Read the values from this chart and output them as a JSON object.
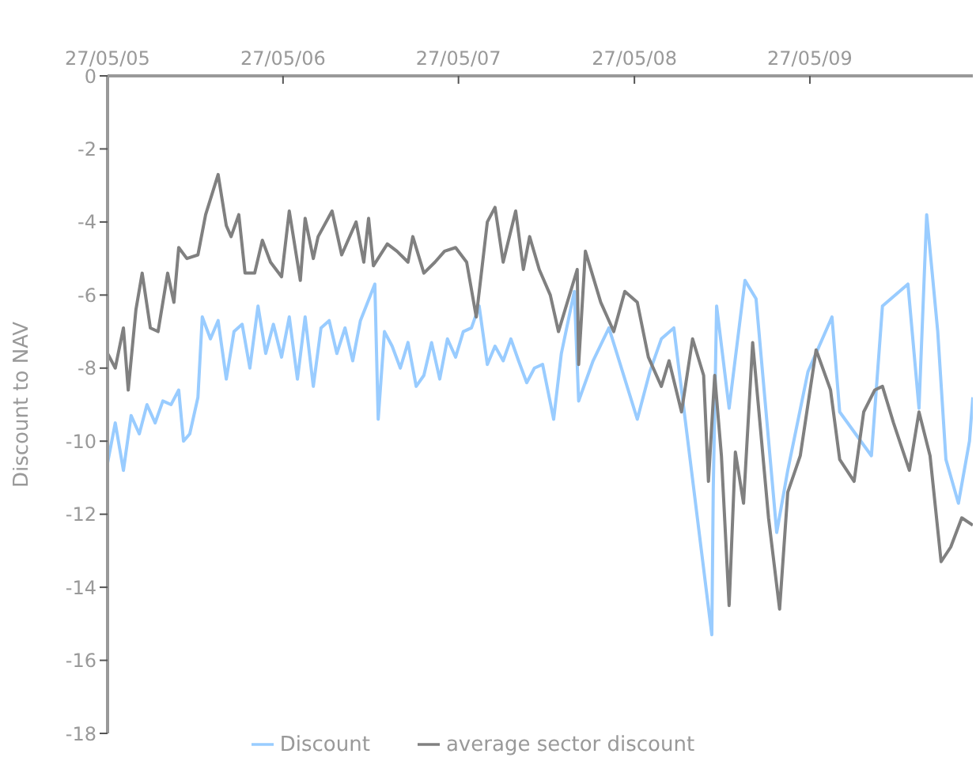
{
  "chart_data": {
    "type": "line",
    "ylabel": "Discount to NAV",
    "xlim": [
      "2005-05-27",
      "2010-05-01"
    ],
    "xticks": [
      {
        "value": "2005-05-27",
        "label": "27/05/05"
      },
      {
        "value": "2006-05-27",
        "label": "27/05/06"
      },
      {
        "value": "2007-05-27",
        "label": "27/05/07"
      },
      {
        "value": "2008-05-27",
        "label": "27/05/08"
      },
      {
        "value": "2009-05-27",
        "label": "27/05/09"
      }
    ],
    "ylim": [
      -18,
      0
    ],
    "yticks": [
      0,
      -2,
      -4,
      -6,
      -8,
      -10,
      -12,
      -14,
      -16,
      -18
    ],
    "grid": false,
    "legend": "bottom",
    "line_style": "solid",
    "marker": "none",
    "series": [
      {
        "name": "Discount",
        "color": "#99ccff",
        "x": [
          "2005-05-27",
          "2005-06-12",
          "2005-06-29",
          "2005-07-15",
          "2005-08-01",
          "2005-08-17",
          "2005-09-03",
          "2005-09-19",
          "2005-10-06",
          "2005-10-22",
          "2005-11-01",
          "2005-11-14",
          "2005-12-01",
          "2005-12-10",
          "2005-12-27",
          "2006-01-12",
          "2006-01-29",
          "2006-02-14",
          "2006-03-03",
          "2006-03-19",
          "2006-04-05",
          "2006-04-21",
          "2006-05-07",
          "2006-05-24",
          "2006-06-09",
          "2006-06-26",
          "2006-07-12",
          "2006-07-29",
          "2006-08-14",
          "2006-08-31",
          "2006-09-16",
          "2006-10-03",
          "2006-10-19",
          "2006-11-04",
          "2006-12-04",
          "2006-12-11",
          "2006-12-24",
          "2007-01-09",
          "2007-01-26",
          "2007-02-11",
          "2007-02-28",
          "2007-03-16",
          "2007-04-01",
          "2007-04-18",
          "2007-05-04",
          "2007-05-21",
          "2007-06-06",
          "2007-06-23",
          "2007-07-09",
          "2007-07-26",
          "2007-08-11",
          "2007-08-28",
          "2007-09-13",
          "2007-09-29",
          "2007-10-16",
          "2007-11-01",
          "2007-11-18",
          "2007-12-11",
          "2007-12-27",
          "2008-01-23",
          "2008-02-01",
          "2008-03-02",
          "2008-04-04",
          "2008-06-02",
          "2008-06-28",
          "2008-07-22",
          "2008-08-17",
          "2008-11-04",
          "2008-11-07",
          "2008-11-14",
          "2008-12-10",
          "2009-01-12",
          "2009-02-04",
          "2009-03-19",
          "2009-04-11",
          "2009-05-23",
          "2009-07-12",
          "2009-07-28",
          "2009-10-02",
          "2009-10-25",
          "2009-12-17",
          "2010-01-09",
          "2010-01-25",
          "2010-02-17",
          "2010-03-06",
          "2010-04-01",
          "2010-04-24",
          "2010-05-01"
        ],
        "values": [
          -10.6,
          -9.5,
          -10.8,
          -9.3,
          -9.8,
          -9.0,
          -9.5,
          -8.9,
          -9.0,
          -8.6,
          -10.0,
          -9.8,
          -8.8,
          -6.6,
          -7.2,
          -6.7,
          -8.3,
          -7.0,
          -6.8,
          -8.0,
          -6.3,
          -7.6,
          -6.8,
          -7.7,
          -6.6,
          -8.3,
          -6.6,
          -8.5,
          -6.9,
          -6.7,
          -7.6,
          -6.9,
          -7.8,
          -6.7,
          -5.7,
          -9.4,
          -7.0,
          -7.4,
          -8.0,
          -7.3,
          -8.5,
          -8.2,
          -7.3,
          -8.3,
          -7.2,
          -7.7,
          -7.0,
          -6.9,
          -6.3,
          -7.9,
          -7.4,
          -7.8,
          -7.2,
          -7.8,
          -8.4,
          -8.0,
          -7.9,
          -9.4,
          -7.6,
          -5.9,
          -8.9,
          -7.8,
          -6.9,
          -9.4,
          -8.1,
          -7.2,
          -6.9,
          -15.3,
          -11.3,
          -6.3,
          -9.1,
          -5.6,
          -6.1,
          -12.5,
          -10.8,
          -8.1,
          -6.6,
          -9.2,
          -10.4,
          -6.3,
          -5.7,
          -9.1,
          -3.8,
          -7.0,
          -10.5,
          -11.7,
          -10.0,
          -8.8
        ]
      },
      {
        "name": "average sector discount",
        "color": "#808080",
        "x": [
          "2005-05-27",
          "2005-06-12",
          "2005-06-29",
          "2005-07-09",
          "2005-07-25",
          "2005-08-07",
          "2005-08-24",
          "2005-09-09",
          "2005-09-29",
          "2005-10-12",
          "2005-10-22",
          "2005-11-08",
          "2005-12-01",
          "2005-12-17",
          "2006-01-12",
          "2006-01-29",
          "2006-02-08",
          "2006-02-24",
          "2006-03-09",
          "2006-03-29",
          "2006-04-14",
          "2006-05-01",
          "2006-05-24",
          "2006-06-09",
          "2006-07-02",
          "2006-07-12",
          "2006-07-29",
          "2006-08-08",
          "2006-09-06",
          "2006-09-26",
          "2006-10-26",
          "2006-11-11",
          "2006-11-21",
          "2006-12-01",
          "2006-12-30",
          "2007-01-19",
          "2007-02-11",
          "2007-02-21",
          "2007-03-16",
          "2007-04-08",
          "2007-04-28",
          "2007-05-21",
          "2007-06-13",
          "2007-07-03",
          "2007-07-26",
          "2007-08-11",
          "2007-08-28",
          "2007-09-23",
          "2007-10-09",
          "2007-10-22",
          "2007-11-11",
          "2007-12-04",
          "2007-12-21",
          "2008-01-29",
          "2008-02-01",
          "2008-02-15",
          "2008-03-18",
          "2008-04-14",
          "2008-05-07",
          "2008-06-02",
          "2008-06-25",
          "2008-07-22",
          "2008-08-07",
          "2008-09-02",
          "2008-09-25",
          "2008-10-18",
          "2008-10-28",
          "2008-11-10",
          "2008-11-24",
          "2008-12-10",
          "2008-12-23",
          "2009-01-09",
          "2009-01-28",
          "2009-03-02",
          "2009-03-25",
          "2009-04-11",
          "2009-05-07",
          "2009-06-09",
          "2009-07-09",
          "2009-07-28",
          "2009-08-27",
          "2009-09-16",
          "2009-10-09",
          "2009-10-25",
          "2009-11-17",
          "2009-12-20",
          "2010-01-09",
          "2010-02-01",
          "2010-02-24",
          "2010-03-16",
          "2010-04-08",
          "2010-05-01"
        ],
        "values": [
          -7.6,
          -8.0,
          -6.9,
          -8.6,
          -6.4,
          -5.4,
          -6.9,
          -7.0,
          -5.4,
          -6.2,
          -4.7,
          -5.0,
          -4.9,
          -3.8,
          -2.7,
          -4.1,
          -4.4,
          -3.8,
          -5.4,
          -5.4,
          -4.5,
          -5.1,
          -5.5,
          -3.7,
          -5.6,
          -3.9,
          -5.0,
          -4.4,
          -3.7,
          -4.9,
          -4.0,
          -5.1,
          -3.9,
          -5.2,
          -4.6,
          -4.8,
          -5.1,
          -4.4,
          -5.4,
          -5.1,
          -4.8,
          -4.7,
          -5.1,
          -6.6,
          -4.0,
          -3.6,
          -5.1,
          -3.7,
          -5.3,
          -4.4,
          -5.3,
          -6.0,
          -7.0,
          -5.3,
          -7.9,
          -4.8,
          -6.2,
          -7.0,
          -5.9,
          -6.2,
          -7.7,
          -8.5,
          -7.8,
          -9.2,
          -7.2,
          -8.2,
          -11.1,
          -8.2,
          -10.4,
          -14.5,
          -10.3,
          -11.7,
          -7.3,
          -12.1,
          -14.6,
          -11.4,
          -10.4,
          -7.5,
          -8.6,
          -10.5,
          -11.1,
          -9.2,
          -8.6,
          -8.5,
          -9.5,
          -10.8,
          -9.2,
          -10.4,
          -13.3,
          -12.9,
          -12.1,
          -12.3
        ]
      }
    ]
  }
}
